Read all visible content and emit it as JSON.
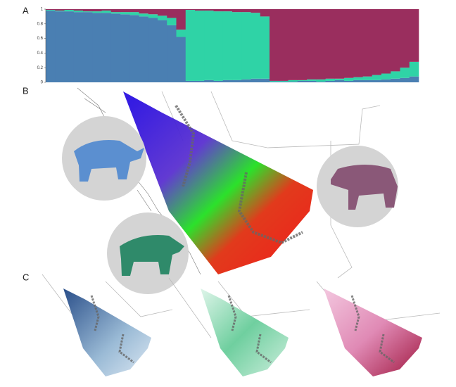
{
  "panel_labels": [
    "A",
    "B",
    "C"
  ],
  "chart_data": {
    "type": "stacked-bar",
    "categories": [
      null,
      null,
      null,
      null,
      null,
      null,
      null,
      null,
      null,
      null,
      null,
      null,
      null,
      null,
      null,
      null,
      null,
      null,
      null,
      null,
      null,
      null,
      null,
      null,
      null,
      null,
      null,
      null,
      null,
      null,
      null,
      null,
      null,
      null,
      null,
      null,
      null,
      null,
      null,
      null
    ],
    "series": [
      {
        "color": "#4a7fb2",
        "values": [
          0.98,
          0.97,
          0.97,
          0.96,
          0.96,
          0.95,
          0.95,
          0.94,
          0.93,
          0.92,
          0.9,
          0.88,
          0.85,
          0.78,
          0.62,
          0.02,
          0.02,
          0.03,
          0.02,
          0.03,
          0.03,
          0.04,
          0.05,
          0.05,
          0.01,
          0.01,
          0.01,
          0.02,
          0.02,
          0.01,
          0.02,
          0.03,
          0.02,
          0.03,
          0.03,
          0.03,
          0.04,
          0.05,
          0.06,
          0.08
        ]
      },
      {
        "color": "#2fd3a6",
        "values": [
          0.01,
          0.01,
          0.02,
          0.02,
          0.01,
          0.02,
          0.03,
          0.02,
          0.03,
          0.04,
          0.04,
          0.05,
          0.06,
          0.1,
          0.1,
          0.97,
          0.96,
          0.95,
          0.95,
          0.94,
          0.93,
          0.92,
          0.9,
          0.85,
          0.01,
          0.01,
          0.02,
          0.01,
          0.02,
          0.03,
          0.03,
          0.02,
          0.04,
          0.04,
          0.05,
          0.07,
          0.08,
          0.1,
          0.14,
          0.2
        ]
      },
      {
        "color": "#9a2e5e",
        "values": [
          0.01,
          0.02,
          0.01,
          0.02,
          0.03,
          0.03,
          0.02,
          0.04,
          0.04,
          0.04,
          0.06,
          0.07,
          0.09,
          0.12,
          0.28,
          0.01,
          0.02,
          0.02,
          0.03,
          0.03,
          0.04,
          0.04,
          0.05,
          0.1,
          0.98,
          0.98,
          0.97,
          0.97,
          0.96,
          0.96,
          0.95,
          0.95,
          0.94,
          0.93,
          0.92,
          0.9,
          0.88,
          0.85,
          0.8,
          0.72
        ]
      }
    ],
    "ylim": [
      0,
      1
    ],
    "yticks": [
      0,
      0.2,
      0.4,
      0.6,
      0.8,
      1
    ]
  }
}
